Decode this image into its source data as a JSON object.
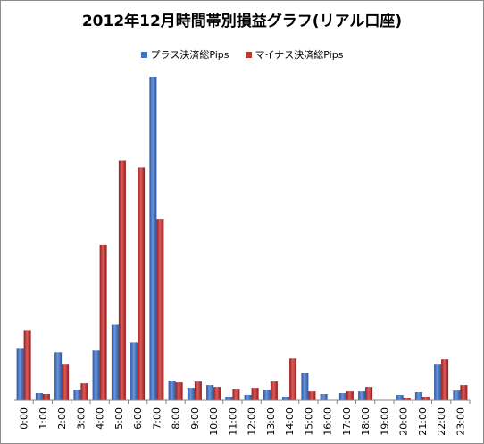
{
  "chart_data": {
    "type": "bar",
    "title": "2012年12月時間帯別損益グラフ(リアル口座)",
    "xlabel": "",
    "ylabel": "",
    "categories": [
      "0:00",
      "1:00",
      "2:00",
      "3:00",
      "4:00",
      "5:00",
      "6:00",
      "7:00",
      "8:00",
      "9:00",
      "10:00",
      "11:00",
      "12:00",
      "13:00",
      "14:00",
      "15:00",
      "16:00",
      "17:00",
      "18:00",
      "19:00",
      "20:00",
      "21:00",
      "22:00",
      "23:00"
    ],
    "series": [
      {
        "name": "プラス決済総Pips",
        "color": "#4472c4",
        "values": [
          58,
          8,
          54,
          12,
          56,
          85,
          65,
          364,
          22,
          14,
          17,
          4,
          6,
          12,
          4,
          31,
          7,
          8,
          10,
          0,
          6,
          9,
          40,
          11
        ]
      },
      {
        "name": "マイナス決済総Pips",
        "color": "#c0392b",
        "values": [
          79,
          7,
          40,
          19,
          175,
          270,
          262,
          204,
          20,
          21,
          15,
          13,
          14,
          21,
          47,
          10,
          0,
          10,
          15,
          0,
          3,
          4,
          46,
          17
        ]
      }
    ],
    "ylim": [
      0,
      370
    ],
    "grid": false,
    "legend_position": "top"
  }
}
